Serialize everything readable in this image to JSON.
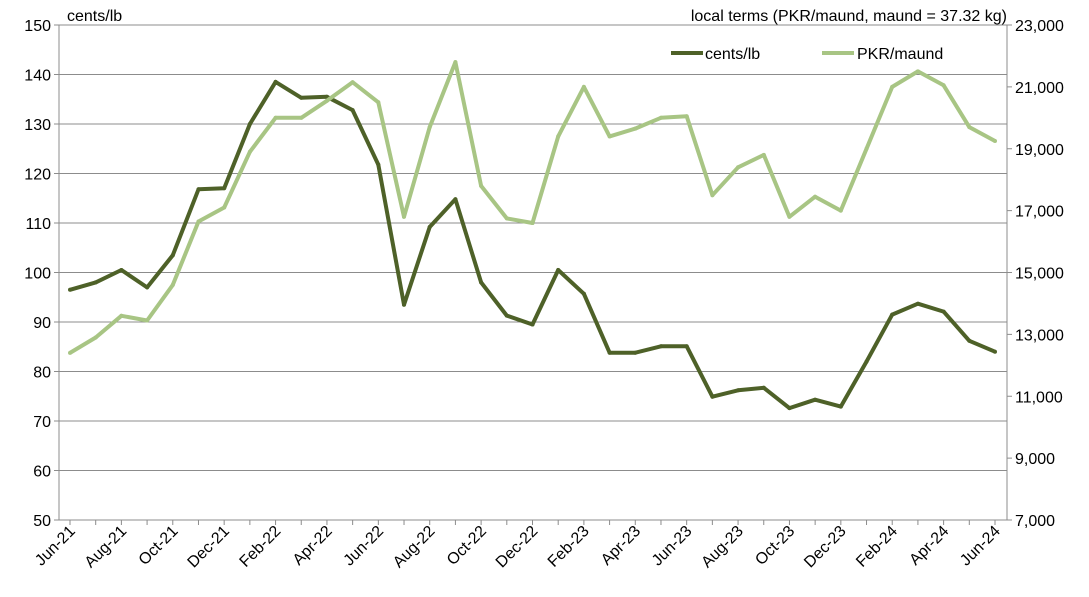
{
  "chart_data": {
    "type": "line",
    "categories": [
      "Jun-21",
      "Jul-21",
      "Aug-21",
      "Sep-21",
      "Oct-21",
      "Nov-21",
      "Dec-21",
      "Jan-22",
      "Feb-22",
      "Mar-22",
      "Apr-22",
      "May-22",
      "Jun-22",
      "Jul-22",
      "Aug-22",
      "Sep-22",
      "Oct-22",
      "Nov-22",
      "Dec-22",
      "Jan-23",
      "Feb-23",
      "Mar-23",
      "Apr-23",
      "May-23",
      "Jun-23",
      "Jul-23",
      "Aug-23",
      "Sep-23",
      "Oct-23",
      "Nov-23",
      "Dec-23",
      "Jan-24",
      "Feb-24",
      "Mar-24",
      "Apr-24",
      "May-24",
      "Jun-24"
    ],
    "x_tick_labels": [
      "Jun-21",
      "Aug-21",
      "Oct-21",
      "Dec-21",
      "Feb-22",
      "Apr-22",
      "Jun-22",
      "Aug-22",
      "Oct-22",
      "Dec-22",
      "Feb-23",
      "Apr-23",
      "Jun-23",
      "Aug-23",
      "Oct-23",
      "Dec-23",
      "Feb-24",
      "Apr-24",
      "Jun-24"
    ],
    "left_axis": {
      "unit_label": "cents/lb",
      "ylim": [
        50,
        150
      ],
      "ticks": [
        "50",
        "60",
        "70",
        "80",
        "90",
        "100",
        "110",
        "120",
        "130",
        "140",
        "150"
      ]
    },
    "right_axis": {
      "unit_label": "local terms (PKR/maund, maund = 37.32 kg)",
      "ylim": [
        7000,
        23000
      ],
      "ticks": [
        "7,000",
        "9,000",
        "11,000",
        "13,000",
        "15,000",
        "17,000",
        "19,000",
        "21,000",
        "23,000"
      ]
    },
    "series": [
      {
        "name": "cents/lb",
        "axis": "left",
        "color": "#4e6128",
        "values": [
          96.5,
          98.0,
          100.5,
          97.0,
          103.5,
          116.8,
          117.0,
          130.0,
          138.5,
          135.3,
          135.5,
          132.8,
          121.8,
          93.5,
          109.2,
          114.8,
          98.0,
          91.3,
          89.5,
          100.5,
          95.7,
          83.8,
          83.8,
          85.1,
          85.1,
          74.9,
          76.2,
          76.7,
          72.6,
          74.3,
          72.9,
          82.0,
          91.5,
          93.7,
          92.1,
          86.2,
          84.0
        ]
      },
      {
        "name": "PKR/maund",
        "axis": "right",
        "color": "#a8c584",
        "values": [
          12400,
          12900,
          13600,
          13450,
          14600,
          16650,
          17100,
          18900,
          20000,
          20000,
          20550,
          21150,
          20500,
          16800,
          19700,
          21800,
          17800,
          16750,
          16600,
          19400,
          21000,
          19400,
          19650,
          20000,
          20050,
          17500,
          18400,
          18800,
          16800,
          17450,
          17000,
          19000,
          21000,
          21500,
          21050,
          19700,
          19250
        ]
      }
    ],
    "legend": {
      "placement": "top-right",
      "entries": [
        "cents/lb",
        "PKR/maund"
      ]
    },
    "grid": true
  }
}
